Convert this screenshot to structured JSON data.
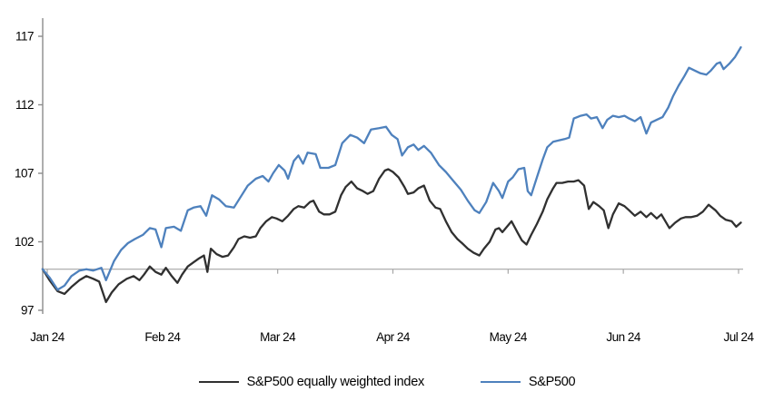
{
  "chart_data": {
    "type": "line",
    "title": "",
    "xlabel": "",
    "ylabel": "",
    "x_unit": "months since Jan 2024 (0 = Jan 24)",
    "x_tick_labels": [
      "Jan 24",
      "Feb 24",
      "Mar 24",
      "Apr 24",
      "May 24",
      "Jun 24",
      "Jul 24"
    ],
    "x_tick_positions": [
      0,
      1,
      2,
      3,
      4,
      5,
      6
    ],
    "y_ticks": [
      97,
      102,
      107,
      112,
      117
    ],
    "ylim": [
      97,
      118.3
    ],
    "xlim": [
      -0.05,
      6.05
    ],
    "baseline_value": 100,
    "grid": "baseline-only",
    "legend_position": "bottom",
    "colors": {
      "axis": "#8c8c8c",
      "baseline": "#a6a6a6",
      "text": "#000000"
    },
    "series": [
      {
        "name": "S&P500 equally weighted index",
        "color": "#303030",
        "points": [
          [
            -0.04,
            100.0
          ],
          [
            0.02,
            99.2
          ],
          [
            0.09,
            98.4
          ],
          [
            0.15,
            98.2
          ],
          [
            0.21,
            98.7
          ],
          [
            0.28,
            99.2
          ],
          [
            0.34,
            99.5
          ],
          [
            0.4,
            99.3
          ],
          [
            0.45,
            99.1
          ],
          [
            0.51,
            97.6
          ],
          [
            0.56,
            98.3
          ],
          [
            0.62,
            98.9
          ],
          [
            0.69,
            99.3
          ],
          [
            0.75,
            99.5
          ],
          [
            0.8,
            99.2
          ],
          [
            0.84,
            99.6
          ],
          [
            0.89,
            100.2
          ],
          [
            0.94,
            99.8
          ],
          [
            0.99,
            99.6
          ],
          [
            1.03,
            100.1
          ],
          [
            1.08,
            99.5
          ],
          [
            1.13,
            99.0
          ],
          [
            1.17,
            99.6
          ],
          [
            1.22,
            100.2
          ],
          [
            1.27,
            100.5
          ],
          [
            1.32,
            100.8
          ],
          [
            1.36,
            101.0
          ],
          [
            1.39,
            99.8
          ],
          [
            1.42,
            101.5
          ],
          [
            1.47,
            101.1
          ],
          [
            1.52,
            100.9
          ],
          [
            1.57,
            101.0
          ],
          [
            1.62,
            101.6
          ],
          [
            1.66,
            102.2
          ],
          [
            1.71,
            102.4
          ],
          [
            1.76,
            102.3
          ],
          [
            1.81,
            102.4
          ],
          [
            1.85,
            103.0
          ],
          [
            1.9,
            103.5
          ],
          [
            1.95,
            103.8
          ],
          [
            1.99,
            103.7
          ],
          [
            2.04,
            103.5
          ],
          [
            2.09,
            103.9
          ],
          [
            2.14,
            104.4
          ],
          [
            2.18,
            104.6
          ],
          [
            2.23,
            104.5
          ],
          [
            2.28,
            104.9
          ],
          [
            2.31,
            105.0
          ],
          [
            2.36,
            104.2
          ],
          [
            2.4,
            104.0
          ],
          [
            2.45,
            104.0
          ],
          [
            2.5,
            104.2
          ],
          [
            2.55,
            105.4
          ],
          [
            2.59,
            106.0
          ],
          [
            2.64,
            106.4
          ],
          [
            2.69,
            105.9
          ],
          [
            2.74,
            105.7
          ],
          [
            2.78,
            105.5
          ],
          [
            2.83,
            105.7
          ],
          [
            2.88,
            106.6
          ],
          [
            2.93,
            107.2
          ],
          [
            2.96,
            107.3
          ],
          [
            3.0,
            107.1
          ],
          [
            3.05,
            106.7
          ],
          [
            3.1,
            106.0
          ],
          [
            3.13,
            105.5
          ],
          [
            3.18,
            105.6
          ],
          [
            3.22,
            105.9
          ],
          [
            3.27,
            106.1
          ],
          [
            3.32,
            105.0
          ],
          [
            3.37,
            104.5
          ],
          [
            3.41,
            104.4
          ],
          [
            3.46,
            103.5
          ],
          [
            3.51,
            102.7
          ],
          [
            3.56,
            102.2
          ],
          [
            3.6,
            101.9
          ],
          [
            3.65,
            101.5
          ],
          [
            3.7,
            101.2
          ],
          [
            3.75,
            101.0
          ],
          [
            3.79,
            101.5
          ],
          [
            3.84,
            102.0
          ],
          [
            3.89,
            102.9
          ],
          [
            3.92,
            103.0
          ],
          [
            3.95,
            102.7
          ],
          [
            4.0,
            103.2
          ],
          [
            4.03,
            103.5
          ],
          [
            4.08,
            102.7
          ],
          [
            4.12,
            102.1
          ],
          [
            4.16,
            101.8
          ],
          [
            4.2,
            102.5
          ],
          [
            4.25,
            103.3
          ],
          [
            4.3,
            104.2
          ],
          [
            4.34,
            105.1
          ],
          [
            4.39,
            105.9
          ],
          [
            4.42,
            106.3
          ],
          [
            4.47,
            106.3
          ],
          [
            4.52,
            106.4
          ],
          [
            4.57,
            106.4
          ],
          [
            4.61,
            106.5
          ],
          [
            4.66,
            106.1
          ],
          [
            4.7,
            104.4
          ],
          [
            4.74,
            104.9
          ],
          [
            4.79,
            104.6
          ],
          [
            4.83,
            104.3
          ],
          [
            4.87,
            103.0
          ],
          [
            4.91,
            104.0
          ],
          [
            4.96,
            104.8
          ],
          [
            5.01,
            104.6
          ],
          [
            5.05,
            104.3
          ],
          [
            5.1,
            103.9
          ],
          [
            5.15,
            104.2
          ],
          [
            5.2,
            103.8
          ],
          [
            5.24,
            104.1
          ],
          [
            5.29,
            103.7
          ],
          [
            5.33,
            104.0
          ],
          [
            5.4,
            103.0
          ],
          [
            5.45,
            103.4
          ],
          [
            5.5,
            103.7
          ],
          [
            5.54,
            103.8
          ],
          [
            5.59,
            103.8
          ],
          [
            5.64,
            103.9
          ],
          [
            5.69,
            104.2
          ],
          [
            5.74,
            104.7
          ],
          [
            5.8,
            104.3
          ],
          [
            5.84,
            103.9
          ],
          [
            5.89,
            103.6
          ],
          [
            5.94,
            103.5
          ],
          [
            5.98,
            103.1
          ],
          [
            6.02,
            103.4
          ]
        ]
      },
      {
        "name": "S&P500",
        "color": "#4e81bd",
        "points": [
          [
            -0.04,
            100.0
          ],
          [
            0.02,
            99.4
          ],
          [
            0.09,
            98.5
          ],
          [
            0.15,
            98.8
          ],
          [
            0.21,
            99.5
          ],
          [
            0.28,
            99.9
          ],
          [
            0.34,
            100.0
          ],
          [
            0.4,
            99.9
          ],
          [
            0.47,
            100.1
          ],
          [
            0.51,
            99.2
          ],
          [
            0.58,
            100.6
          ],
          [
            0.64,
            101.4
          ],
          [
            0.7,
            101.9
          ],
          [
            0.76,
            102.2
          ],
          [
            0.83,
            102.5
          ],
          [
            0.89,
            103.0
          ],
          [
            0.94,
            102.9
          ],
          [
            0.99,
            101.6
          ],
          [
            1.03,
            103.0
          ],
          [
            1.1,
            103.1
          ],
          [
            1.16,
            102.8
          ],
          [
            1.22,
            104.3
          ],
          [
            1.27,
            104.5
          ],
          [
            1.33,
            104.6
          ],
          [
            1.38,
            103.9
          ],
          [
            1.43,
            105.4
          ],
          [
            1.49,
            105.1
          ],
          [
            1.55,
            104.6
          ],
          [
            1.62,
            104.5
          ],
          [
            1.68,
            105.3
          ],
          [
            1.74,
            106.1
          ],
          [
            1.81,
            106.6
          ],
          [
            1.87,
            106.8
          ],
          [
            1.92,
            106.4
          ],
          [
            1.96,
            107.0
          ],
          [
            2.01,
            107.6
          ],
          [
            2.06,
            107.2
          ],
          [
            2.09,
            106.6
          ],
          [
            2.14,
            107.9
          ],
          [
            2.18,
            108.3
          ],
          [
            2.22,
            107.7
          ],
          [
            2.26,
            108.5
          ],
          [
            2.33,
            108.4
          ],
          [
            2.37,
            107.4
          ],
          [
            2.44,
            107.4
          ],
          [
            2.5,
            107.6
          ],
          [
            2.56,
            109.2
          ],
          [
            2.63,
            109.8
          ],
          [
            2.69,
            109.6
          ],
          [
            2.75,
            109.2
          ],
          [
            2.81,
            110.2
          ],
          [
            2.88,
            110.3
          ],
          [
            2.94,
            110.4
          ],
          [
            2.99,
            109.8
          ],
          [
            3.04,
            109.5
          ],
          [
            3.08,
            108.3
          ],
          [
            3.13,
            108.9
          ],
          [
            3.18,
            109.1
          ],
          [
            3.22,
            108.7
          ],
          [
            3.27,
            109.0
          ],
          [
            3.33,
            108.5
          ],
          [
            3.4,
            107.6
          ],
          [
            3.46,
            107.1
          ],
          [
            3.52,
            106.5
          ],
          [
            3.59,
            105.8
          ],
          [
            3.65,
            105.0
          ],
          [
            3.71,
            104.3
          ],
          [
            3.75,
            104.1
          ],
          [
            3.81,
            104.9
          ],
          [
            3.87,
            106.3
          ],
          [
            3.92,
            105.7
          ],
          [
            3.95,
            105.2
          ],
          [
            4.0,
            106.4
          ],
          [
            4.04,
            106.7
          ],
          [
            4.09,
            107.3
          ],
          [
            4.14,
            107.4
          ],
          [
            4.17,
            105.7
          ],
          [
            4.2,
            105.4
          ],
          [
            4.25,
            106.7
          ],
          [
            4.3,
            108.0
          ],
          [
            4.34,
            108.9
          ],
          [
            4.39,
            109.3
          ],
          [
            4.44,
            109.4
          ],
          [
            4.49,
            109.5
          ],
          [
            4.53,
            109.6
          ],
          [
            4.57,
            111.0
          ],
          [
            4.63,
            111.2
          ],
          [
            4.68,
            111.3
          ],
          [
            4.72,
            111.0
          ],
          [
            4.77,
            111.1
          ],
          [
            4.82,
            110.3
          ],
          [
            4.86,
            110.9
          ],
          [
            4.91,
            111.2
          ],
          [
            4.96,
            111.1
          ],
          [
            5.01,
            111.2
          ],
          [
            5.05,
            111.0
          ],
          [
            5.1,
            110.8
          ],
          [
            5.15,
            111.1
          ],
          [
            5.2,
            109.9
          ],
          [
            5.24,
            110.7
          ],
          [
            5.29,
            110.9
          ],
          [
            5.34,
            111.1
          ],
          [
            5.39,
            111.8
          ],
          [
            5.43,
            112.6
          ],
          [
            5.48,
            113.4
          ],
          [
            5.53,
            114.1
          ],
          [
            5.57,
            114.7
          ],
          [
            5.62,
            114.5
          ],
          [
            5.67,
            114.3
          ],
          [
            5.72,
            114.2
          ],
          [
            5.76,
            114.5
          ],
          [
            5.81,
            115.0
          ],
          [
            5.84,
            115.1
          ],
          [
            5.87,
            114.6
          ],
          [
            5.92,
            115.0
          ],
          [
            5.97,
            115.5
          ],
          [
            6.02,
            116.2
          ]
        ]
      }
    ]
  }
}
